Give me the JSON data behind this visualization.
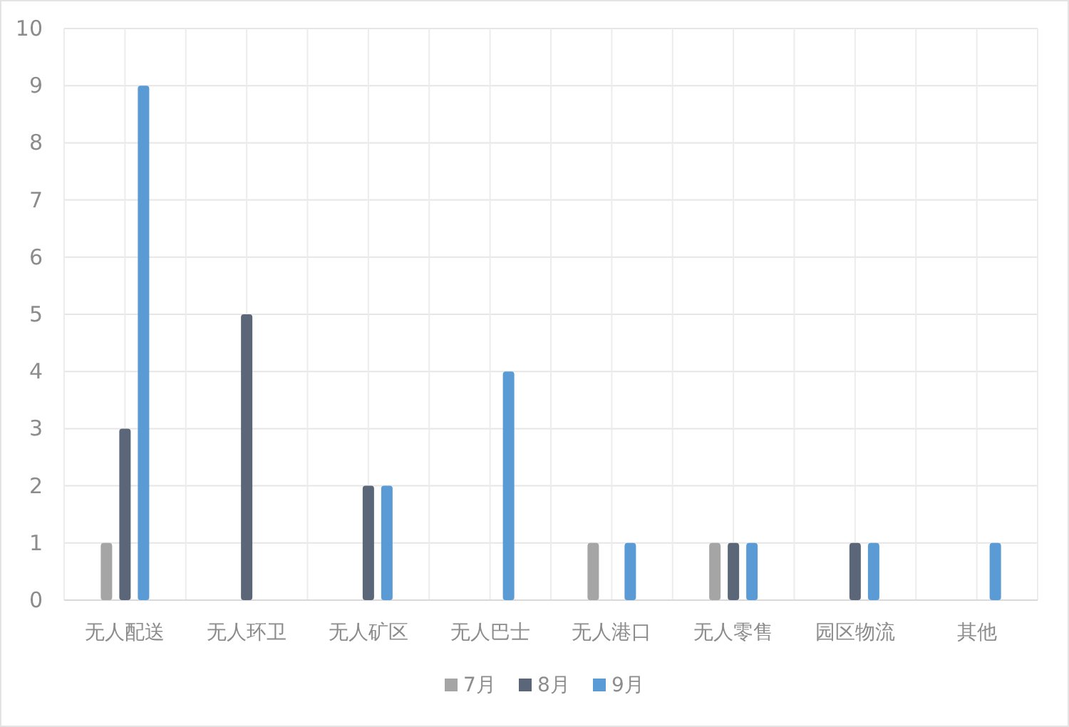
{
  "chart_data": {
    "type": "bar",
    "categories": [
      "无人配送",
      "无人环卫",
      "无人矿区",
      "无人巴士",
      "无人港口",
      "无人零售",
      "园区物流",
      "其他"
    ],
    "series": [
      {
        "name": "7月",
        "color": "#a5a5a5",
        "values": [
          1,
          null,
          null,
          null,
          1,
          1,
          null,
          null
        ]
      },
      {
        "name": "8月",
        "color": "#5b6779",
        "values": [
          3,
          5,
          2,
          null,
          null,
          1,
          1,
          null
        ]
      },
      {
        "name": "9月",
        "color": "#5b9bd5",
        "values": [
          9,
          null,
          2,
          4,
          1,
          1,
          1,
          1
        ]
      }
    ],
    "ylim": [
      0,
      10
    ],
    "yticks": [
      0,
      1,
      2,
      3,
      4,
      5,
      6,
      7,
      8,
      9,
      10
    ],
    "grid": true,
    "legend": "bottom"
  }
}
